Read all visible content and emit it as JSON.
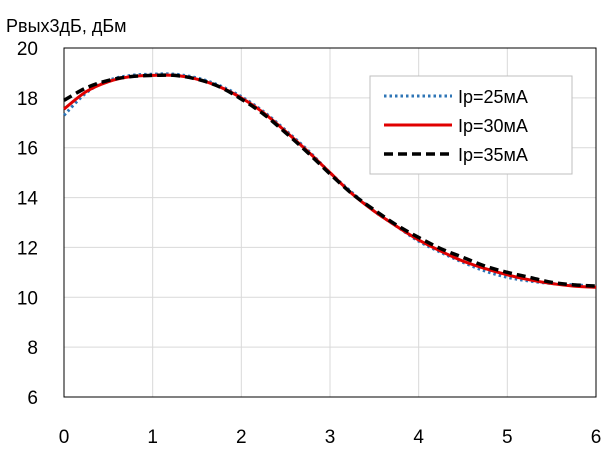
{
  "chart_data": {
    "type": "line",
    "ylabel": "Рвых3дБ, дБм",
    "xlabel": "",
    "title": "",
    "xlim": [
      0,
      6
    ],
    "ylim": [
      6,
      20
    ],
    "x_ticks": [
      0,
      1,
      2,
      3,
      4,
      5,
      6
    ],
    "y_ticks": [
      6,
      8,
      10,
      12,
      14,
      16,
      18,
      20
    ],
    "x_tick_labels": [
      "0",
      "1",
      "2",
      "3",
      "4",
      "5",
      "6"
    ],
    "y_tick_labels": [
      "6",
      "8",
      "10",
      "12",
      "14",
      "16",
      "18",
      "20"
    ],
    "grid": true,
    "legend_position": "top-right",
    "series": [
      {
        "name": "Ip=25мА",
        "color": "#2e75b6",
        "style": "dotted",
        "x": [
          0,
          0.25,
          0.5,
          0.75,
          1.0,
          1.25,
          1.5,
          1.75,
          2.0,
          2.25,
          2.5,
          2.75,
          3.0,
          3.25,
          3.5,
          3.75,
          4.0,
          4.25,
          4.5,
          4.75,
          5.0,
          5.25,
          5.5,
          5.75,
          6.0
        ],
        "y": [
          17.3,
          18.2,
          18.7,
          18.9,
          18.95,
          18.95,
          18.8,
          18.5,
          18.05,
          17.45,
          16.7,
          15.9,
          15.0,
          14.2,
          13.45,
          12.85,
          12.25,
          11.8,
          11.4,
          11.05,
          10.8,
          10.65,
          10.55,
          10.5,
          10.45
        ]
      },
      {
        "name": "Ip=30мА",
        "color": "#e00000",
        "style": "solid",
        "x": [
          0,
          0.25,
          0.5,
          0.75,
          1.0,
          1.25,
          1.5,
          1.75,
          2.0,
          2.25,
          2.5,
          2.75,
          3.0,
          3.25,
          3.5,
          3.75,
          4.0,
          4.25,
          4.5,
          4.75,
          5.0,
          5.25,
          5.5,
          5.75,
          6.0
        ],
        "y": [
          17.55,
          18.25,
          18.65,
          18.85,
          18.9,
          18.9,
          18.75,
          18.45,
          18.0,
          17.4,
          16.65,
          15.85,
          15.0,
          14.15,
          13.45,
          12.85,
          12.3,
          11.85,
          11.45,
          11.15,
          10.9,
          10.7,
          10.55,
          10.45,
          10.4
        ]
      },
      {
        "name": "Ip=35мА",
        "color": "#000000",
        "style": "dashed",
        "x": [
          0,
          0.25,
          0.5,
          0.75,
          1.0,
          1.25,
          1.5,
          1.75,
          2.0,
          2.25,
          2.5,
          2.75,
          3.0,
          3.25,
          3.5,
          3.75,
          4.0,
          4.25,
          4.5,
          4.75,
          5.0,
          5.25,
          5.5,
          5.75,
          6.0
        ],
        "y": [
          17.9,
          18.4,
          18.7,
          18.85,
          18.9,
          18.9,
          18.75,
          18.45,
          17.95,
          17.35,
          16.6,
          15.8,
          14.95,
          14.15,
          13.5,
          12.9,
          12.4,
          11.95,
          11.6,
          11.25,
          11.0,
          10.8,
          10.6,
          10.5,
          10.45
        ]
      }
    ]
  }
}
